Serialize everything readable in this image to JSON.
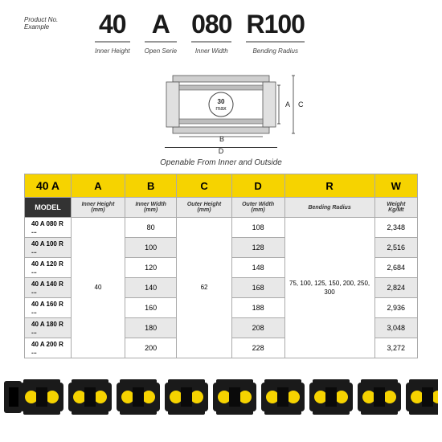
{
  "header": {
    "productLabel": "Product No. Example",
    "codes": [
      {
        "big": "40",
        "sub": "Inner Height"
      },
      {
        "big": "A",
        "sub": "Open Serie"
      },
      {
        "big": "080",
        "sub": "Inner Width"
      },
      {
        "big": "R100",
        "sub": "Bending Radius"
      }
    ]
  },
  "diagram": {
    "circleText": "30 max",
    "labels": {
      "A": "A",
      "B": "B",
      "C": "C",
      "D": "D"
    },
    "caption": "Openable From Inner and Outside"
  },
  "table": {
    "corner": "40 A",
    "cols": [
      "A",
      "B",
      "C",
      "D",
      "R",
      "W"
    ],
    "modelHeader": "MODEL",
    "subHeaders": [
      "Inner Height (mm)",
      "Inner Width (mm)",
      "Outer Height (mm)",
      "Outer Width (mm)",
      "Bending Radius",
      "Weight Kg/Mt"
    ],
    "mergedA": "40",
    "mergedC": "62",
    "mergedR": "75, 100, 125, 150, 200, 250, 300",
    "rows": [
      {
        "model": "40 A 080 R ...",
        "B": "80",
        "D": "108",
        "W": "2,348"
      },
      {
        "model": "40 A 100 R ...",
        "B": "100",
        "D": "128",
        "W": "2,516"
      },
      {
        "model": "40 A 120 R ...",
        "B": "120",
        "D": "148",
        "W": "2,684"
      },
      {
        "model": "40 A 140 R ...",
        "B": "140",
        "D": "168",
        "W": "2,824"
      },
      {
        "model": "40 A 160 R ...",
        "B": "160",
        "D": "188",
        "W": "2,936"
      },
      {
        "model": "40 A 180 R ...",
        "B": "180",
        "D": "208",
        "W": "3,048"
      },
      {
        "model": "40 A 200 R ...",
        "B": "200",
        "D": "228",
        "W": "3,272"
      }
    ]
  },
  "colors": {
    "yellow": "#f6d300",
    "darkHeader": "#333333",
    "greyRow": "#e8e8e8",
    "chainBlack": "#1a1a1a",
    "chainYellow": "#f6d300"
  }
}
